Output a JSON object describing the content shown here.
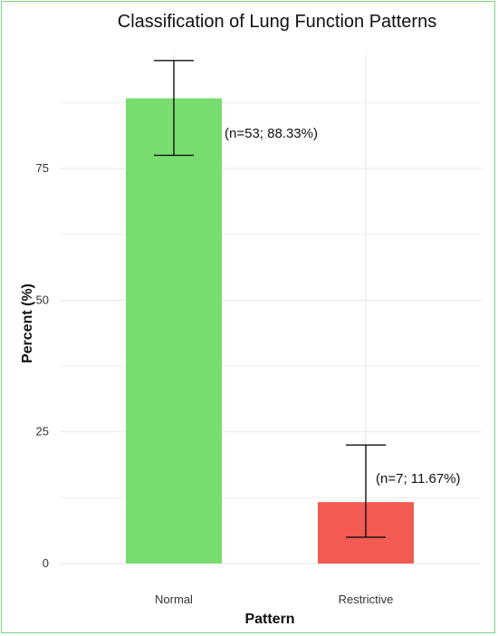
{
  "chart_data": {
    "type": "bar",
    "title": "Classification of Lung Function Patterns",
    "xlabel": "Pattern",
    "ylabel": "Percent (%)",
    "categories": [
      "Normal",
      "Restrictive"
    ],
    "values": [
      88.33,
      11.67
    ],
    "error_bars": [
      {
        "low": 77.5,
        "high": 95.5
      },
      {
        "low": 5.0,
        "high": 22.5
      }
    ],
    "data_labels": [
      "(n=53; 88.33%)",
      "(n=7; 11.67%)"
    ],
    "y_ticks": [
      0,
      25,
      50,
      75
    ],
    "y_tick_labels": [
      "0",
      "25",
      "50",
      "75"
    ],
    "ylim": [
      0,
      100
    ],
    "grid": true,
    "colors": {
      "bars": [
        "#77dd6f",
        "#f25a52"
      ],
      "frame": "#7fcf7f",
      "grid": "#e6e6e6",
      "error_bar": "#111111"
    }
  }
}
